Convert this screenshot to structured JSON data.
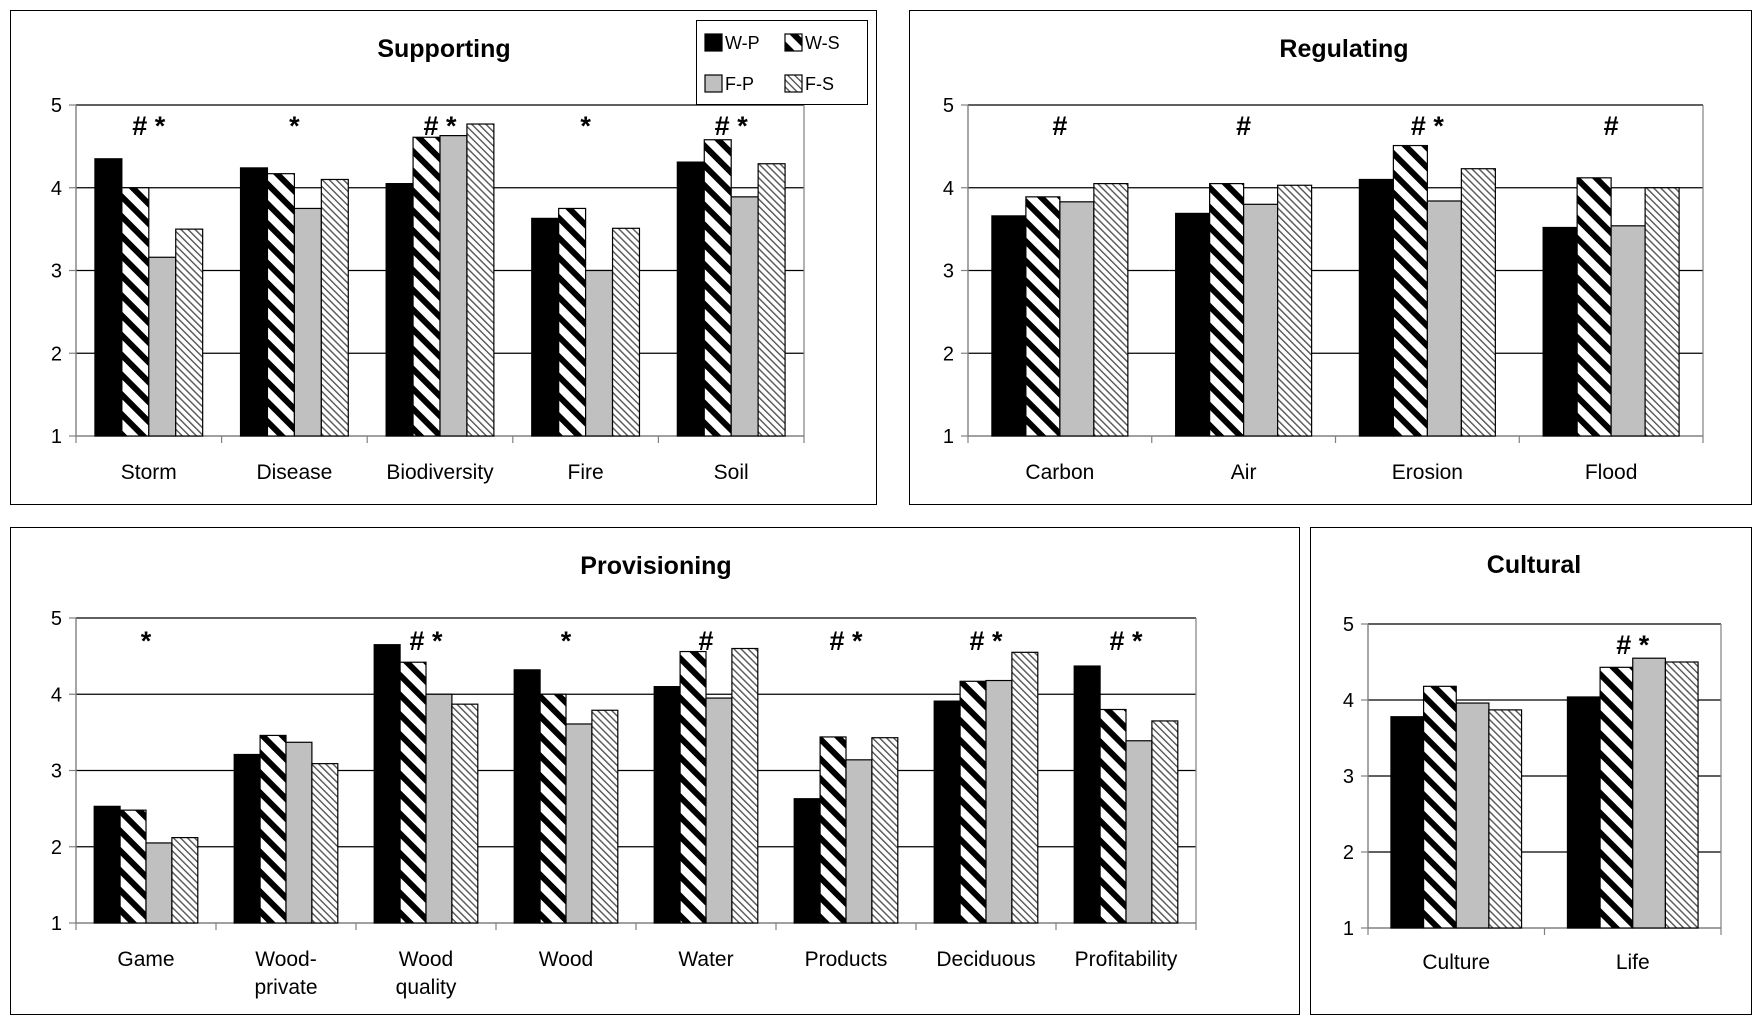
{
  "legend": {
    "items": [
      {
        "label": "W-P",
        "fill": "black"
      },
      {
        "label": "W-S",
        "fill": "bold-stripe"
      },
      {
        "label": "F-P",
        "fill": "gray"
      },
      {
        "label": "F-S",
        "fill": "light-stripe"
      }
    ]
  },
  "colors": {
    "wp": "#000000",
    "fp": "#c0c0c0",
    "grid": "#000000",
    "axis": "#808080"
  },
  "chart_data": [
    {
      "type": "bar",
      "title": "Supporting",
      "ylim": [
        1,
        5
      ],
      "yticks": [
        1,
        2,
        3,
        4,
        5
      ],
      "grid": true,
      "legend": "top-right",
      "categories": [
        "Storm",
        "Disease",
        "Biodiversity",
        "Fire",
        "Soil"
      ],
      "markers": [
        "# *",
        "*",
        "# *",
        "*",
        "# *"
      ],
      "series": [
        {
          "name": "W-P",
          "values": [
            4.35,
            4.24,
            4.05,
            3.63,
            4.31
          ]
        },
        {
          "name": "W-S",
          "values": [
            4.0,
            4.17,
            4.61,
            3.75,
            4.58
          ]
        },
        {
          "name": "F-P",
          "values": [
            3.16,
            3.75,
            4.63,
            3.0,
            3.89
          ]
        },
        {
          "name": "F-S",
          "values": [
            3.5,
            4.1,
            4.77,
            3.51,
            4.29
          ]
        }
      ]
    },
    {
      "type": "bar",
      "title": "Regulating",
      "ylim": [
        1,
        5
      ],
      "yticks": [
        1,
        2,
        3,
        4,
        5
      ],
      "grid": true,
      "categories": [
        "Carbon",
        "Air",
        "Erosion",
        "Flood"
      ],
      "markers": [
        "#",
        "#",
        "# *",
        "#"
      ],
      "series": [
        {
          "name": "W-P",
          "values": [
            3.66,
            3.69,
            4.1,
            3.52
          ]
        },
        {
          "name": "W-S",
          "values": [
            3.89,
            4.05,
            4.51,
            4.12
          ]
        },
        {
          "name": "F-P",
          "values": [
            3.83,
            3.8,
            3.84,
            3.54
          ]
        },
        {
          "name": "F-S",
          "values": [
            4.05,
            4.03,
            4.23,
            4.0
          ]
        }
      ]
    },
    {
      "type": "bar",
      "title": "Provisioning",
      "ylim": [
        1,
        5
      ],
      "yticks": [
        1,
        2,
        3,
        4,
        5
      ],
      "grid": true,
      "categories": [
        [
          "Game"
        ],
        [
          "Wood-",
          "private"
        ],
        [
          "Wood",
          "quality"
        ],
        [
          "Wood"
        ],
        [
          "Water"
        ],
        [
          "Products"
        ],
        [
          "Deciduous"
        ],
        [
          "Profitability"
        ]
      ],
      "markers": [
        "*",
        "",
        "# *",
        "*",
        "#",
        "# *",
        "# *",
        "# *"
      ],
      "series": [
        {
          "name": "W-P",
          "values": [
            2.53,
            3.21,
            4.65,
            4.32,
            4.1,
            2.63,
            3.91,
            4.37
          ]
        },
        {
          "name": "W-S",
          "values": [
            2.48,
            3.46,
            4.42,
            4.0,
            4.56,
            3.44,
            4.17,
            3.8
          ]
        },
        {
          "name": "F-P",
          "values": [
            2.05,
            3.37,
            4.0,
            3.61,
            3.95,
            3.14,
            4.18,
            3.39
          ]
        },
        {
          "name": "F-S",
          "values": [
            2.12,
            3.09,
            3.87,
            3.79,
            4.6,
            3.43,
            4.55,
            3.65
          ]
        }
      ]
    },
    {
      "type": "bar",
      "title": "Cultural",
      "ylim": [
        1,
        5
      ],
      "yticks": [
        1,
        2,
        3,
        4,
        5
      ],
      "grid": true,
      "categories": [
        [
          "Culture"
        ],
        [
          "Life"
        ]
      ],
      "markers": [
        "",
        "# *"
      ],
      "series": [
        {
          "name": "W-P",
          "values": [
            3.78,
            4.04
          ]
        },
        {
          "name": "W-S",
          "values": [
            4.18,
            4.43
          ]
        },
        {
          "name": "F-P",
          "values": [
            3.96,
            4.55
          ]
        },
        {
          "name": "F-S",
          "values": [
            3.87,
            4.5
          ]
        }
      ]
    }
  ]
}
